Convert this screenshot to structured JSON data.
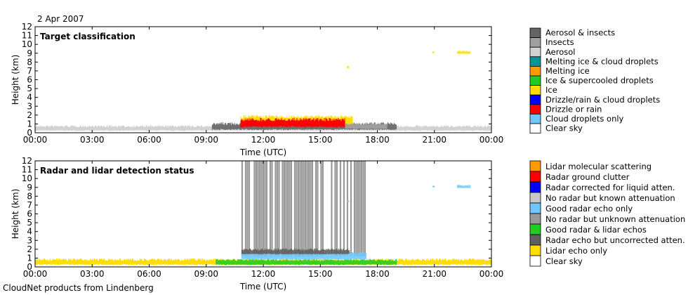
{
  "header": {
    "date": "2 Apr 2007",
    "footer": "CloudNet products from Lindenberg"
  },
  "chart_data": [
    {
      "type": "heatmap",
      "title": "Target classification",
      "xlabel": "Time (UTC)",
      "ylabel": "Height (km)",
      "xlim": [
        "00:00",
        "24:00"
      ],
      "ylim": [
        0,
        12
      ],
      "x_tick_labels": [
        "00:00",
        "03:00",
        "06:00",
        "09:00",
        "12:00",
        "15:00",
        "18:00",
        "21:00",
        "00:00"
      ],
      "y_tick_labels": [
        "0",
        "1",
        "2",
        "3",
        "4",
        "5",
        "6",
        "7",
        "8",
        "9",
        "10",
        "11",
        "12"
      ],
      "legend_position": "right",
      "legend": [
        {
          "label": "Aerosol & insects",
          "color": "#646464"
        },
        {
          "label": "Insects",
          "color": "#a0a0a0"
        },
        {
          "label": "Aerosol",
          "color": "#d2d2d2"
        },
        {
          "label": "Melting ice & cloud droplets",
          "color": "#009696"
        },
        {
          "label": "Melting ice",
          "color": "#ff9900"
        },
        {
          "label": "Ice & supercooled droplets",
          "color": "#22cc22"
        },
        {
          "label": "Ice",
          "color": "#ffdd00"
        },
        {
          "label": "Drizzle/rain & cloud droplets",
          "color": "#0000ff"
        },
        {
          "label": "Drizzle or rain",
          "color": "#ff0000"
        },
        {
          "label": "Cloud droplets only",
          "color": "#6cc8ff"
        },
        {
          "label": "Clear sky",
          "color": "#ffffff"
        }
      ],
      "regions": [
        {
          "class": "Aerosol",
          "t_start": 0.0,
          "t_end": 24.0,
          "h_bottom": 0.2,
          "h_top": 0.85
        },
        {
          "class": "Aerosol & insects",
          "t_start": 9.3,
          "t_end": 19.0,
          "h_bottom": 0.3,
          "h_top": 1.2
        },
        {
          "class": "Insects",
          "t_start": 16.3,
          "t_end": 18.5,
          "h_bottom": 0.4,
          "h_top": 1.1
        },
        {
          "class": "Ice",
          "t_start": 10.8,
          "t_end": 16.7,
          "h_bottom": 0.9,
          "h_top": 2.0
        },
        {
          "class": "Drizzle or rain",
          "t_start": 10.8,
          "t_end": 16.3,
          "h_bottom": 0.6,
          "h_top": 1.7
        },
        {
          "class": "Ice",
          "t_start": 16.4,
          "t_end": 16.5,
          "h_bottom": 7.3,
          "h_top": 7.6
        },
        {
          "class": "Ice",
          "t_start": 20.9,
          "t_end": 21.0,
          "h_bottom": 9.0,
          "h_top": 9.2
        },
        {
          "class": "Ice",
          "t_start": 22.2,
          "t_end": 22.9,
          "h_bottom": 8.9,
          "h_top": 9.3
        }
      ]
    },
    {
      "type": "heatmap",
      "title": "Radar and lidar detection status",
      "xlabel": "Time (UTC)",
      "ylabel": "Height (km)",
      "xlim": [
        "00:00",
        "24:00"
      ],
      "ylim": [
        0,
        12
      ],
      "x_tick_labels": [
        "00:00",
        "03:00",
        "06:00",
        "09:00",
        "12:00",
        "15:00",
        "18:00",
        "21:00",
        "00:00"
      ],
      "y_tick_labels": [
        "0",
        "1",
        "2",
        "3",
        "4",
        "5",
        "6",
        "7",
        "8",
        "9",
        "10",
        "11",
        "12"
      ],
      "legend_position": "right",
      "legend": [
        {
          "label": "Lidar molecular scattering",
          "color": "#ff9900"
        },
        {
          "label": "Radar ground clutter",
          "color": "#ff0000"
        },
        {
          "label": "Radar corrected for liquid atten.",
          "color": "#0000ff"
        },
        {
          "label": "No radar but known attenuation",
          "color": "#c8c8c8"
        },
        {
          "label": "Good radar echo only",
          "color": "#6cc8ff"
        },
        {
          "label": "No radar but unknown attenuation",
          "color": "#999999"
        },
        {
          "label": "Good radar & lidar echos",
          "color": "#22cc22"
        },
        {
          "label": "Radar echo but uncorrected atten.",
          "color": "#5f5f5f"
        },
        {
          "label": "Lidar echo only",
          "color": "#ffdd00"
        },
        {
          "label": "Clear sky",
          "color": "#ffffff"
        }
      ],
      "regions": [
        {
          "class": "Lidar echo only",
          "t_start": 0.0,
          "t_end": 24.0,
          "h_bottom": 0.2,
          "h_top": 0.95
        },
        {
          "class": "No radar but unknown attenuation",
          "t_start": 10.85,
          "t_end": 17.4,
          "h_bottom": 1.2,
          "h_top": 12.0
        },
        {
          "class": "Good radar & lidar echos",
          "t_start": 9.5,
          "t_end": 19.0,
          "h_bottom": 0.2,
          "h_top": 0.9
        },
        {
          "class": "Good radar echo only",
          "t_start": 10.85,
          "t_end": 17.4,
          "h_bottom": 0.8,
          "h_top": 1.7
        },
        {
          "class": "Radar echo but uncorrected atten.",
          "t_start": 10.85,
          "t_end": 16.5,
          "h_bottom": 1.4,
          "h_top": 2.1
        },
        {
          "class": "Good radar echo only",
          "t_start": 16.4,
          "t_end": 16.5,
          "h_bottom": 7.3,
          "h_top": 7.6
        },
        {
          "class": "Good radar echo only",
          "t_start": 20.9,
          "t_end": 21.0,
          "h_bottom": 9.0,
          "h_top": 9.2
        },
        {
          "class": "Good radar echo only",
          "t_start": 22.2,
          "t_end": 22.9,
          "h_bottom": 8.9,
          "h_top": 9.3
        }
      ]
    }
  ]
}
